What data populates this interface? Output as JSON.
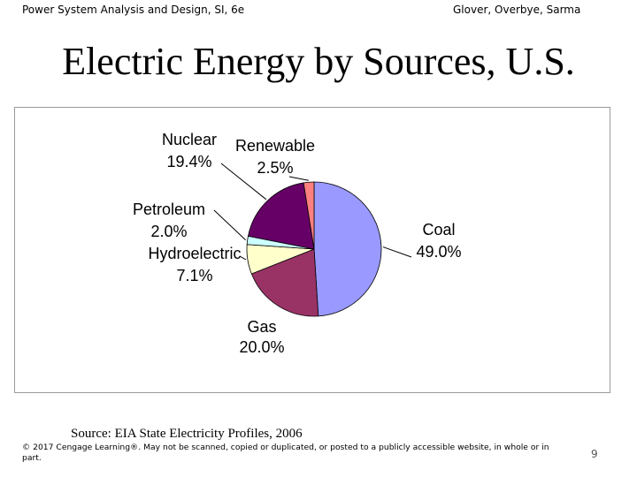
{
  "header": {
    "left": "Power System Analysis and Design, SI, 6e",
    "right": "Glover, Overbye, Sarma"
  },
  "chart_data": {
    "type": "pie",
    "title": "Electric Energy by Sources, U.S.",
    "slices": [
      {
        "name": "Coal",
        "value": 49.0,
        "label": "49.0%",
        "color": "#9999ff"
      },
      {
        "name": "Gas",
        "value": 20.0,
        "label": "20.0%",
        "color": "#993366"
      },
      {
        "name": "Hydroelectric",
        "value": 7.1,
        "label": "7.1%",
        "color": "#ffffcc"
      },
      {
        "name": "Petroleum",
        "value": 2.0,
        "label": "2.0%",
        "color": "#ccffff"
      },
      {
        "name": "Nuclear",
        "value": 19.4,
        "label": "19.4%",
        "color": "#660066"
      },
      {
        "name": "Renewable",
        "value": 2.5,
        "label": "2.5%",
        "color": "#ff8080"
      }
    ]
  },
  "source": "Source: EIA State Electricity Profiles, 2006",
  "copyright": "© 2017 Cengage Learning®. May not be scanned, copied or duplicated, or posted to a publicly accessible website, in whole or in part.",
  "page_number": "9"
}
